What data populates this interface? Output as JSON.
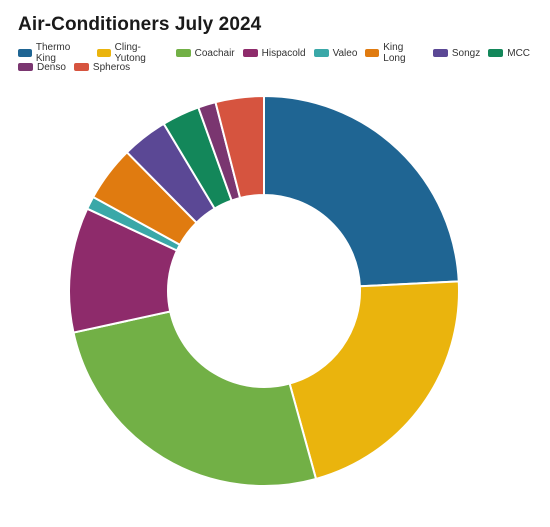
{
  "chart_data": {
    "type": "pie",
    "variant": "donut",
    "title": "Air-Conditioners July 2024",
    "legend_position": "top-left",
    "categories": [
      "Thermo King",
      "Cling-Yutong",
      "Coachair",
      "Hispacold",
      "Valeo",
      "King Long",
      "Songz",
      "MCC",
      "Denso",
      "Spheros"
    ],
    "values": [
      24.8,
      22.0,
      26.5,
      10.6,
      1.1,
      4.7,
      3.9,
      3.2,
      1.5,
      4.1
    ],
    "colors": [
      "#1f6593",
      "#eab40d",
      "#72b046",
      "#8e2b6b",
      "#3aa8a8",
      "#e07b10",
      "#5b4895",
      "#13875a",
      "#7a3670",
      "#d6543f"
    ]
  }
}
